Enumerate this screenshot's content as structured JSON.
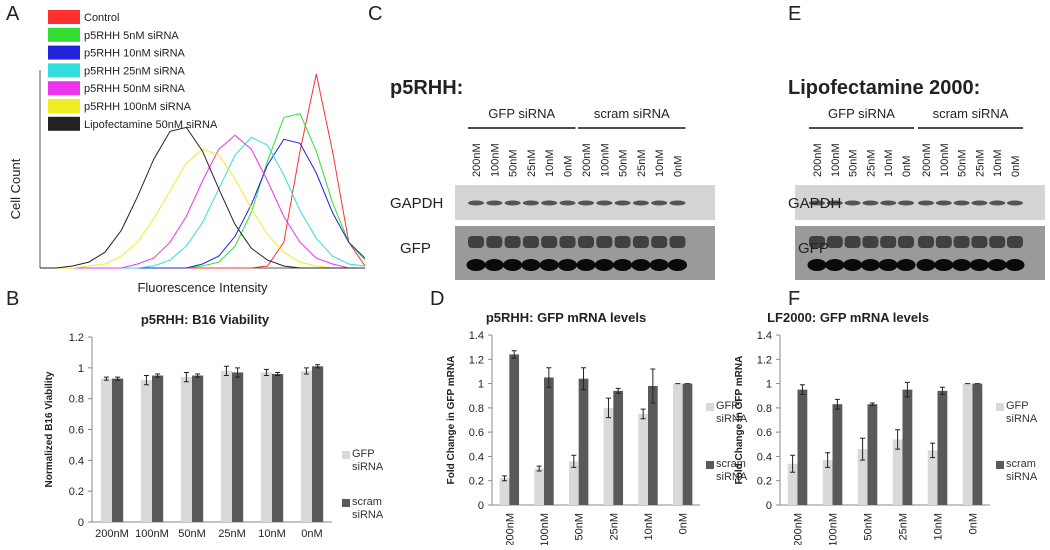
{
  "panel_labels": [
    "A",
    "B",
    "C",
    "D",
    "E",
    "F"
  ],
  "chart_data": [
    {
      "type": "line",
      "xlabel": "Fluorescence Intensity",
      "ylabel": "Cell Count",
      "legend": "upper left",
      "x": [
        0,
        5,
        10,
        15,
        20,
        25,
        30,
        35,
        40,
        45,
        50,
        55,
        60,
        65,
        70,
        75,
        80,
        85,
        90,
        95,
        100
      ],
      "xlim": [
        0,
        100
      ],
      "ylim": [
        0,
        100
      ],
      "series": [
        {
          "name": "Control",
          "color": "#ff3030",
          "values": [
            0,
            0,
            0,
            0,
            0,
            0,
            0,
            0,
            0,
            0,
            0,
            0,
            0,
            0,
            1,
            13,
            59,
            98,
            59,
            13,
            1
          ]
        },
        {
          "name": "p5RHH 5nM siRNA",
          "color": "#33dd33",
          "values": [
            0,
            0,
            0,
            0,
            0,
            0,
            0,
            0,
            0,
            0,
            1,
            3,
            11,
            28,
            54,
            76,
            78,
            59,
            33,
            13,
            4
          ]
        },
        {
          "name": "p5RHH 10nM siRNA",
          "color": "#2222dd",
          "values": [
            0,
            0,
            0,
            0,
            0,
            0,
            0,
            0,
            0,
            0,
            2,
            6,
            16,
            32,
            52,
            65,
            63,
            48,
            28,
            13,
            5
          ]
        },
        {
          "name": "p5RHH 25nM siRNA",
          "color": "#33dddd",
          "values": [
            0,
            0,
            0,
            0,
            0,
            0,
            0,
            1,
            4,
            11,
            23,
            40,
            57,
            66,
            62,
            47,
            29,
            15,
            6,
            2,
            1
          ]
        },
        {
          "name": "p5RHH 50nM siRNA",
          "color": "#ee33ee",
          "values": [
            0,
            0,
            0,
            0,
            0,
            0,
            2,
            5,
            13,
            26,
            44,
            60,
            67,
            60,
            44,
            26,
            13,
            5,
            2,
            0,
            0
          ]
        },
        {
          "name": "p5RHH 100nM siRNA",
          "color": "#eeee22",
          "values": [
            0,
            0,
            0,
            1,
            2,
            6,
            13,
            25,
            39,
            53,
            60,
            57,
            45,
            30,
            17,
            8,
            3,
            1,
            0,
            0,
            0
          ]
        },
        {
          "name": "Lipofectamine 50nM siRNA",
          "color": "#222222",
          "values": [
            0,
            0,
            1,
            3,
            8,
            19,
            36,
            55,
            69,
            71,
            59,
            40,
            22,
            10,
            4,
            1,
            0,
            0,
            0,
            0,
            0
          ]
        }
      ]
    },
    {
      "type": "bar",
      "title": "p5RHH: B16 Viability",
      "ylabel": "Normalized B16 Viability",
      "categories": [
        "200nM",
        "100nM",
        "50nM",
        "25nM",
        "10nM",
        "0nM"
      ],
      "xtick_rotation": 0,
      "legend": "right",
      "ylim": [
        0,
        1.2
      ],
      "yticks": [
        0,
        0.2,
        0.4,
        0.6,
        0.8,
        1,
        1.2
      ],
      "series": [
        {
          "name": "GFP siRNA",
          "color": "#d9d9d9",
          "values": [
            0.93,
            0.92,
            0.94,
            0.98,
            0.97,
            0.98
          ],
          "errors": [
            0.01,
            0.03,
            0.03,
            0.03,
            0.02,
            0.02
          ]
        },
        {
          "name": "scram siRNA",
          "color": "#595959",
          "values": [
            0.93,
            0.95,
            0.95,
            0.97,
            0.96,
            1.01
          ],
          "errors": [
            0.01,
            0.01,
            0.01,
            0.03,
            0.01,
            0.01
          ]
        }
      ]
    },
    {
      "type": "bar",
      "title": "p5RHH: GFP mRNA levels",
      "ylabel": "Fold Change in GFP mRNA",
      "categories": [
        "200nM",
        "100nM",
        "50nM",
        "25nM",
        "10nM",
        "0nM"
      ],
      "xtick_rotation": -90,
      "legend": "right",
      "ylim": [
        0,
        1.4
      ],
      "yticks": [
        0,
        0.2,
        0.4,
        0.6,
        0.8,
        1,
        1.2,
        1.4
      ],
      "series": [
        {
          "name": "GFP siRNA",
          "color": "#d9d9d9",
          "values": [
            0.22,
            0.3,
            0.36,
            0.8,
            0.75,
            1
          ],
          "errors": [
            0.02,
            0.02,
            0.05,
            0.08,
            0.04,
            0
          ]
        },
        {
          "name": "scram siRNA",
          "color": "#595959",
          "values": [
            1.24,
            1.05,
            1.04,
            0.94,
            0.98,
            1
          ],
          "errors": [
            0.03,
            0.08,
            0.09,
            0.02,
            0.14,
            0
          ]
        }
      ]
    },
    {
      "type": "bar",
      "title": "LF2000: GFP mRNA levels",
      "ylabel": "Fold Change in GFP mRNA",
      "categories": [
        "200nM",
        "100nM",
        "50nM",
        "25nM",
        "10nM",
        "0nM"
      ],
      "xtick_rotation": -90,
      "legend": "right",
      "ylim": [
        0,
        1.4
      ],
      "yticks": [
        0,
        0.2,
        0.4,
        0.6,
        0.8,
        1,
        1.2,
        1.4
      ],
      "series": [
        {
          "name": "GFP siRNA",
          "color": "#d9d9d9",
          "values": [
            0.34,
            0.37,
            0.46,
            0.54,
            0.45,
            1
          ],
          "errors": [
            0.07,
            0.06,
            0.09,
            0.08,
            0.06,
            0
          ]
        },
        {
          "name": "scram siRNA",
          "color": "#595959",
          "values": [
            0.95,
            0.83,
            0.83,
            0.95,
            0.94,
            1
          ],
          "errors": [
            0.04,
            0.04,
            0.01,
            0.06,
            0.03,
            0
          ]
        }
      ]
    }
  ],
  "blots": [
    {
      "title": "p5RHH:",
      "rows": [
        "GAPDH",
        "GFP"
      ],
      "groups": [
        {
          "name": "GFP siRNA",
          "lanes": [
            "200nM",
            "100nM",
            "50nM",
            "25nM",
            "10nM",
            "0nM"
          ]
        },
        {
          "name": "scram siRNA",
          "lanes": [
            "200nM",
            "100nM",
            "50nM",
            "25nM",
            "10nM",
            "0nM"
          ]
        }
      ]
    },
    {
      "title": "Lipofectamine 2000:",
      "rows": [
        "GAPDH",
        "GFP"
      ],
      "groups": [
        {
          "name": "GFP siRNA",
          "lanes": [
            "200nM",
            "100nM",
            "50nM",
            "25nM",
            "10nM",
            "0nM"
          ]
        },
        {
          "name": "scram siRNA",
          "lanes": [
            "200nM",
            "100nM",
            "50nM",
            "25nM",
            "10nM",
            "0nM"
          ]
        }
      ]
    }
  ]
}
